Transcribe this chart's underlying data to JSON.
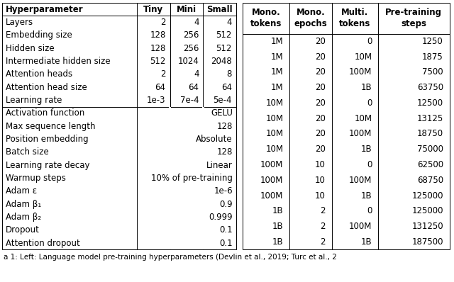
{
  "left_table": {
    "headers": [
      "Hyperparameter",
      "Tiny",
      "Mini",
      "Small"
    ],
    "rows_top": [
      [
        "Layers",
        "2",
        "4",
        "4"
      ],
      [
        "Embedding size",
        "128",
        "256",
        "512"
      ],
      [
        "Hidden size",
        "128",
        "256",
        "512"
      ],
      [
        "Intermediate hidden size",
        "512",
        "1024",
        "2048"
      ],
      [
        "Attention heads",
        "2",
        "4",
        "8"
      ],
      [
        "Attention head size",
        "64",
        "64",
        "64"
      ],
      [
        "Learning rate",
        "1e-3",
        "7e-4",
        "5e-4"
      ]
    ],
    "rows_bottom": [
      [
        "Activation function",
        "GELU"
      ],
      [
        "Max sequence length",
        "128"
      ],
      [
        "Position embedding",
        "Absolute"
      ],
      [
        "Batch size",
        "128"
      ],
      [
        "Learning rate decay",
        "Linear"
      ],
      [
        "Warmup steps",
        "10% of pre-training"
      ],
      [
        "Adam ε",
        "1e-6"
      ],
      [
        "Adam β₁",
        "0.9"
      ],
      [
        "Adam β₂",
        "0.999"
      ],
      [
        "Dropout",
        "0.1"
      ],
      [
        "Attention dropout",
        "0.1"
      ]
    ]
  },
  "right_table": {
    "headers": [
      "Mono.\ntokens",
      "Mono.\nepochs",
      "Multi.\ntokens",
      "Pre-training\nsteps"
    ],
    "rows": [
      [
        "1M",
        "20",
        "0",
        "1250"
      ],
      [
        "1M",
        "20",
        "10M",
        "1875"
      ],
      [
        "1M",
        "20",
        "100M",
        "7500"
      ],
      [
        "1M",
        "20",
        "1B",
        "63750"
      ],
      [
        "10M",
        "20",
        "0",
        "12500"
      ],
      [
        "10M",
        "20",
        "10M",
        "13125"
      ],
      [
        "10M",
        "20",
        "100M",
        "18750"
      ],
      [
        "10M",
        "20",
        "1B",
        "75000"
      ],
      [
        "100M",
        "10",
        "0",
        "62500"
      ],
      [
        "100M",
        "10",
        "100M",
        "68750"
      ],
      [
        "100M",
        "10",
        "1B",
        "125000"
      ],
      [
        "1B",
        "2",
        "0",
        "125000"
      ],
      [
        "1B",
        "2",
        "100M",
        "131250"
      ],
      [
        "1B",
        "2",
        "1B",
        "187500"
      ]
    ]
  },
  "caption": "a 1: Left: Language model pre-training hyperparameters (Devlin et al., 2019; Turc et al., 2",
  "background_color": "#ffffff",
  "font_size": 8.5
}
